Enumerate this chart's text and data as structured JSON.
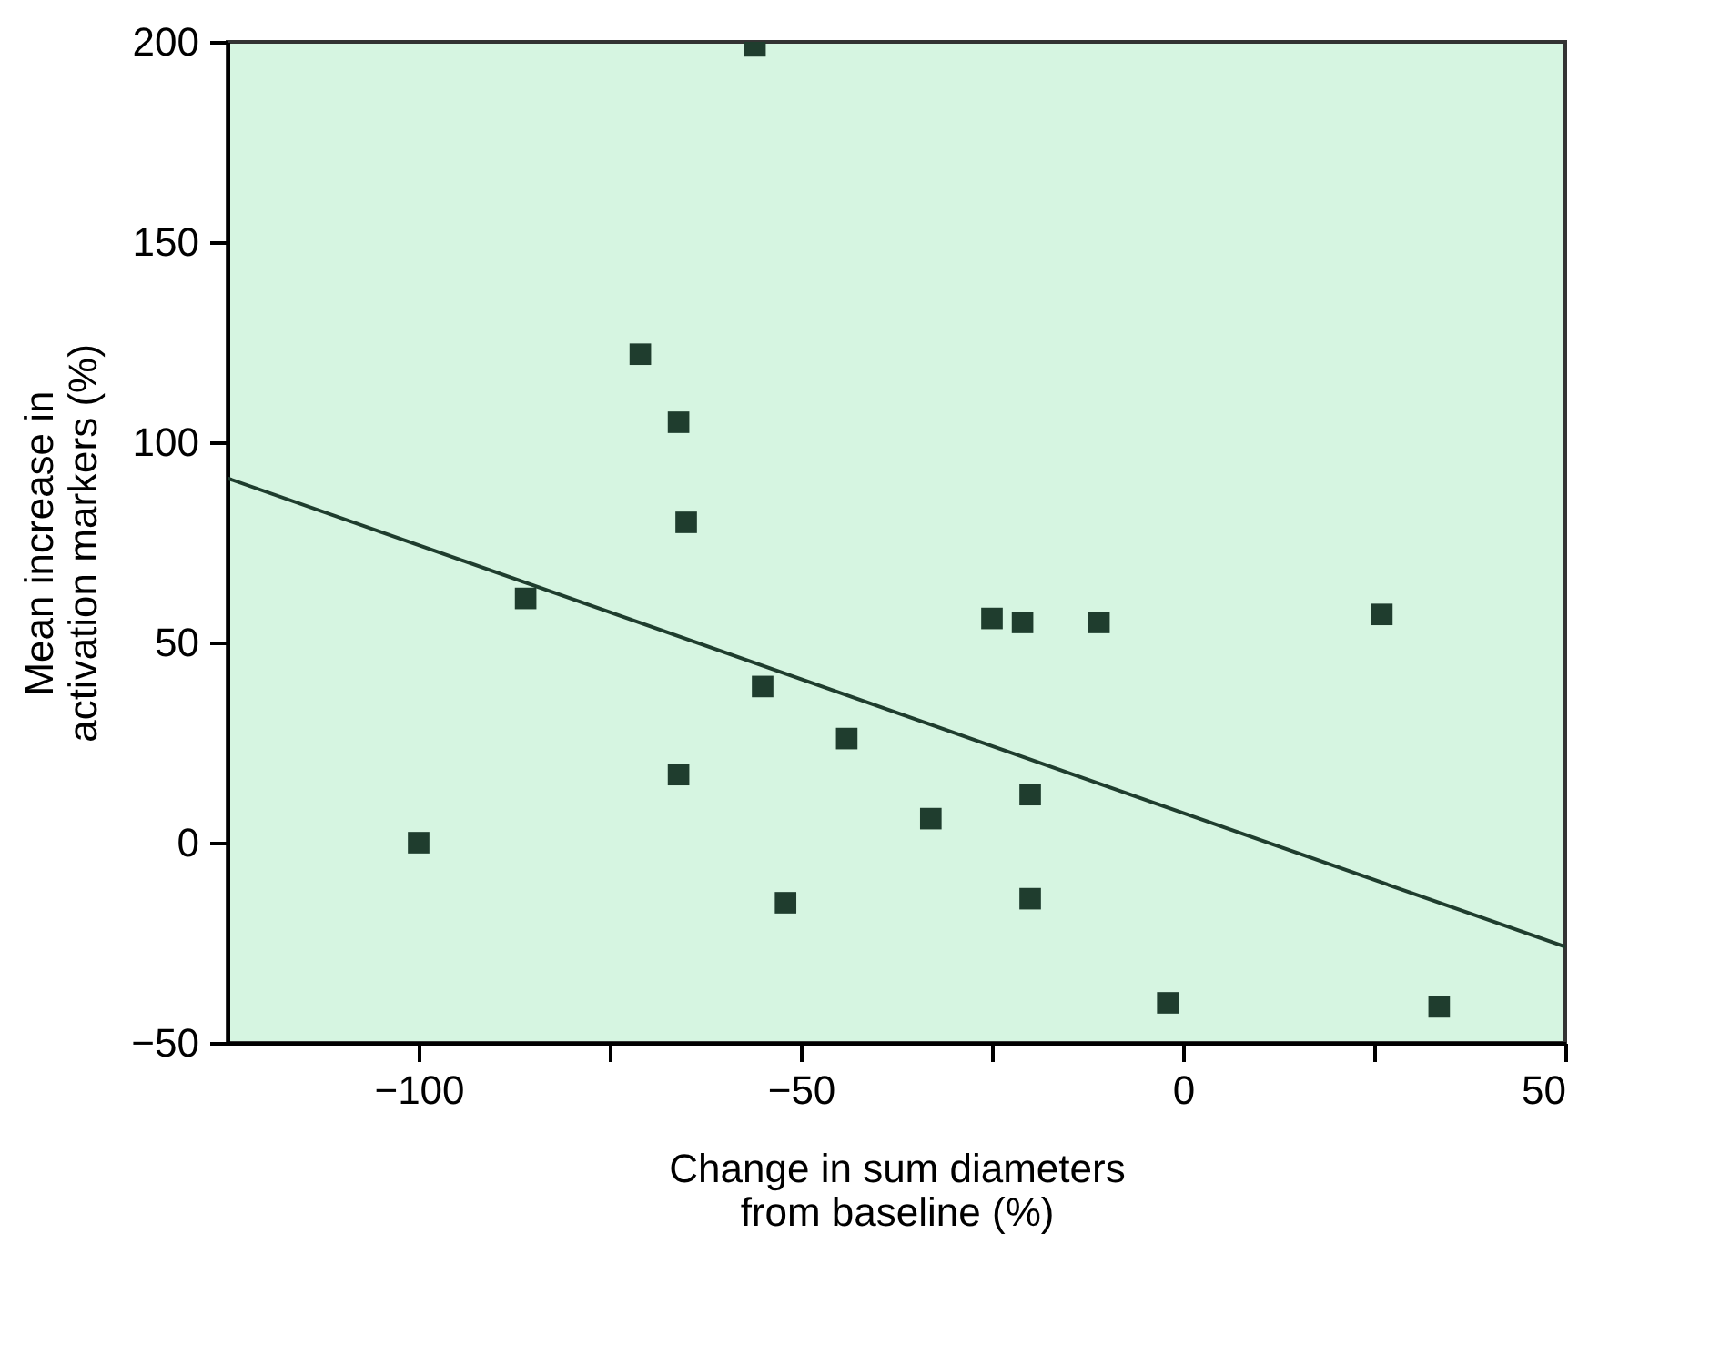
{
  "chart_data": {
    "type": "scatter",
    "xlabel": "Change in sum diameters\nfrom baseline (%)",
    "ylabel": "Mean increase in\nactivation markers (%)",
    "xlim": [
      -125,
      50
    ],
    "ylim": [
      -50,
      200
    ],
    "xticks": [
      -100,
      {
        "value": -75,
        "label": null
      },
      -50,
      {
        "value": -25,
        "label": null
      },
      0,
      {
        "value": 25,
        "label": null
      },
      50
    ],
    "yticks": [
      -50,
      0,
      50,
      100,
      150,
      200
    ],
    "grid": false,
    "series": [
      {
        "marker": "square",
        "color": "#1f3d2e",
        "x": [
          -56,
          -71,
          -66,
          -65,
          -86,
          -100,
          -55,
          -66,
          -44,
          -33,
          -52,
          -25,
          -21,
          -20,
          -20,
          -11,
          -2,
          26,
          33.5
        ],
        "values": [
          199,
          122,
          105,
          80,
          61,
          0,
          39,
          17,
          26,
          6,
          -15,
          56,
          55,
          12,
          -14,
          55,
          -40,
          57,
          -41
        ]
      },
      {
        "type": "line",
        "marker": "none",
        "line_style": "solid",
        "color": "#1f3d2e",
        "x": [
          -125,
          50
        ],
        "values": [
          91,
          -26
        ]
      }
    ]
  }
}
